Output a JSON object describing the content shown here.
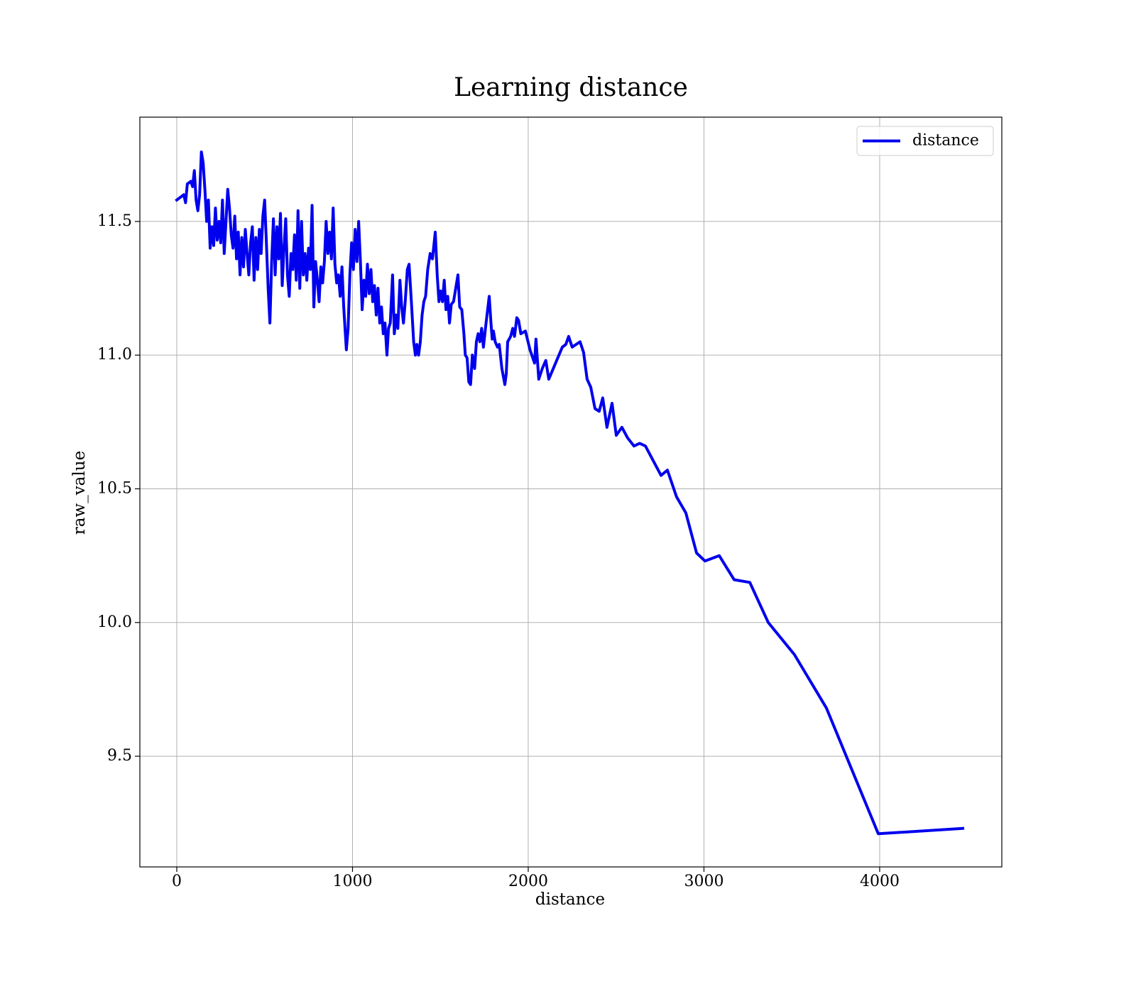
{
  "chart_data": {
    "type": "line",
    "title": "Learning distance",
    "xlabel": "distance",
    "ylabel": "raw_value",
    "xlim": [
      -210,
      4695
    ],
    "ylim": [
      9.086,
      11.89
    ],
    "xticks": [
      0,
      1000,
      2000,
      3000,
      4000
    ],
    "yticks": [
      9.5,
      {
        "value": 10,
        "label": "10.0"
      },
      10.5,
      {
        "value": 11,
        "label": "11.0"
      },
      11.5
    ],
    "grid": true,
    "legend": "upper right",
    "x": [
      0,
      40,
      50,
      60,
      80,
      90,
      100,
      110,
      120,
      130,
      140,
      150,
      160,
      170,
      180,
      190,
      200,
      210,
      220,
      230,
      240,
      250,
      260,
      270,
      280,
      290,
      300,
      310,
      320,
      330,
      340,
      350,
      360,
      370,
      380,
      390,
      400,
      410,
      420,
      430,
      440,
      450,
      460,
      470,
      480,
      490,
      500,
      510,
      520,
      530,
      540,
      550,
      560,
      570,
      580,
      590,
      600,
      610,
      620,
      630,
      640,
      650,
      660,
      670,
      680,
      690,
      700,
      710,
      720,
      730,
      740,
      750,
      760,
      770,
      780,
      790,
      800,
      810,
      820,
      830,
      840,
      850,
      860,
      870,
      880,
      890,
      900,
      910,
      920,
      930,
      940,
      950,
      965,
      975,
      985,
      995,
      1005,
      1015,
      1025,
      1035,
      1045,
      1055,
      1065,
      1075,
      1085,
      1095,
      1105,
      1115,
      1125,
      1135,
      1145,
      1155,
      1165,
      1175,
      1185,
      1196,
      1205,
      1215,
      1228,
      1238,
      1248,
      1258,
      1270,
      1280,
      1290,
      1300,
      1312,
      1322,
      1335,
      1348,
      1358,
      1366,
      1376,
      1386,
      1396,
      1406,
      1416,
      1428,
      1442,
      1455,
      1471,
      1482,
      1492,
      1502,
      1512,
      1522,
      1532,
      1542,
      1552,
      1562,
      1575,
      1600,
      1610,
      1622,
      1634,
      1642,
      1652,
      1662,
      1672,
      1682,
      1695,
      1705,
      1715,
      1725,
      1735,
      1745,
      1760,
      1778,
      1788,
      1795,
      1802,
      1812,
      1825,
      1835,
      1850,
      1867,
      1875,
      1883,
      1900,
      1912,
      1922,
      1935,
      1945,
      1958,
      1984,
      2010,
      2036,
      2044,
      2060,
      2080,
      2100,
      2117,
      2194,
      2214,
      2230,
      2250,
      2295,
      2315,
      2335,
      2356,
      2380,
      2404,
      2424,
      2448,
      2477,
      2501,
      2533,
      2566,
      2602,
      2634,
      2667,
      2756,
      2792,
      2844,
      2897,
      2958,
      3006,
      3087,
      3172,
      3261,
      3366,
      3515,
      3697,
      3992,
      4473
    ],
    "series": [
      {
        "name": "distance",
        "color": "#0000ee",
        "values": [
          11.58,
          11.6,
          11.57,
          11.64,
          11.65,
          11.63,
          11.69,
          11.58,
          11.54,
          11.6,
          11.76,
          11.72,
          11.62,
          11.5,
          11.58,
          11.4,
          11.48,
          11.41,
          11.55,
          11.43,
          11.5,
          11.42,
          11.58,
          11.38,
          11.5,
          11.62,
          11.55,
          11.45,
          11.4,
          11.52,
          11.36,
          11.46,
          11.3,
          11.44,
          11.33,
          11.47,
          11.38,
          11.3,
          11.42,
          11.48,
          11.28,
          11.44,
          11.32,
          11.47,
          11.38,
          11.52,
          11.58,
          11.42,
          11.25,
          11.12,
          11.35,
          11.51,
          11.3,
          11.48,
          11.36,
          11.53,
          11.26,
          11.4,
          11.51,
          11.3,
          11.22,
          11.38,
          11.32,
          11.45,
          11.28,
          11.54,
          11.25,
          11.5,
          11.3,
          11.38,
          11.28,
          11.4,
          11.32,
          11.56,
          11.18,
          11.35,
          11.28,
          11.2,
          11.33,
          11.27,
          11.35,
          11.5,
          11.38,
          11.46,
          11.36,
          11.55,
          11.34,
          11.27,
          11.3,
          11.22,
          11.33,
          11.18,
          11.02,
          11.1,
          11.3,
          11.42,
          11.32,
          11.47,
          11.35,
          11.5,
          11.35,
          11.17,
          11.28,
          11.22,
          11.34,
          11.23,
          11.32,
          11.2,
          11.26,
          11.15,
          11.25,
          11.12,
          11.18,
          11.08,
          11.12,
          11.0,
          11.1,
          11.12,
          11.3,
          11.08,
          11.15,
          11.1,
          11.28,
          11.18,
          11.12,
          11.2,
          11.32,
          11.34,
          11.2,
          11.05,
          11.0,
          11.04,
          11.0,
          11.05,
          11.15,
          11.2,
          11.22,
          11.32,
          11.38,
          11.36,
          11.46,
          11.3,
          11.2,
          11.24,
          11.2,
          11.28,
          11.17,
          11.22,
          11.12,
          11.19,
          11.2,
          11.3,
          11.18,
          11.17,
          11.08,
          11.0,
          10.99,
          10.9,
          10.89,
          11.0,
          10.95,
          11.05,
          11.08,
          11.05,
          11.1,
          11.03,
          11.12,
          11.22,
          11.12,
          11.06,
          11.09,
          11.05,
          11.03,
          11.04,
          10.95,
          10.89,
          10.93,
          11.05,
          11.07,
          11.1,
          11.07,
          11.14,
          11.13,
          11.08,
          11.09,
          11.02,
          10.97,
          11.06,
          10.91,
          10.95,
          10.98,
          10.91,
          11.03,
          11.04,
          11.07,
          11.03,
          11.05,
          11.01,
          10.91,
          10.88,
          10.8,
          10.79,
          10.84,
          10.73,
          10.82,
          10.7,
          10.73,
          10.69,
          10.66,
          10.67,
          10.66,
          10.55,
          10.57,
          10.47,
          10.41,
          10.26,
          10.23,
          10.25,
          10.16,
          10.15,
          10.0,
          9.88,
          9.68,
          9.21,
          9.23
        ]
      }
    ]
  }
}
